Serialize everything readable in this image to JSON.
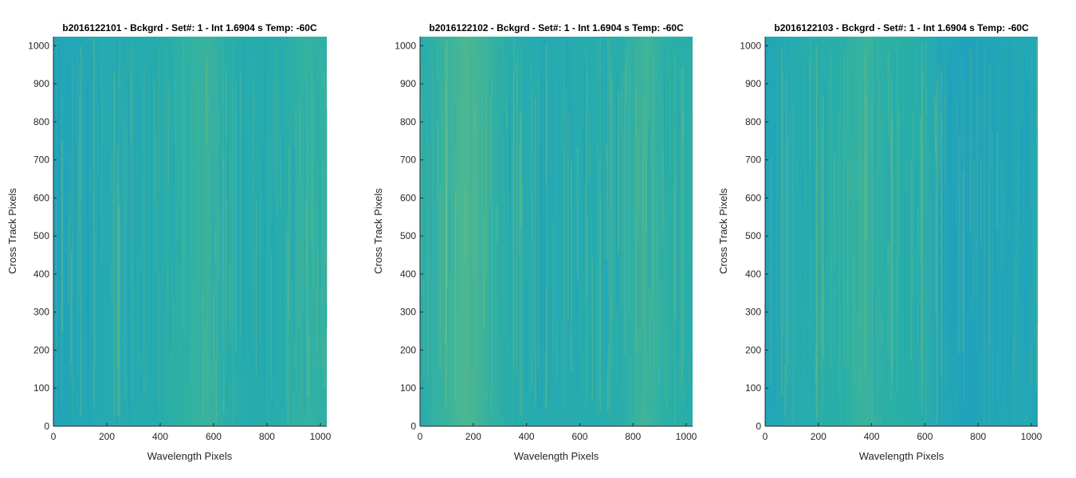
{
  "chart_data": [
    {
      "type": "heatmap",
      "title": "b2016122101 - Bckgrd - Set#: 1 - Int 1.6904 s Temp: -60C",
      "xlabel": "Wavelength Pixels",
      "ylabel": "Cross Track Pixels",
      "xlim": [
        0,
        1024
      ],
      "ylim": [
        0,
        1024
      ],
      "xticks": [
        0,
        200,
        400,
        600,
        800,
        1000
      ],
      "yticks": [
        0,
        100,
        200,
        300,
        400,
        500,
        600,
        700,
        800,
        900,
        1000
      ],
      "colormap": "parula",
      "colors": {
        "low": "#1595d4",
        "mid": "#2bb0a6",
        "high": "#a8c85c"
      },
      "column_profile": [
        {
          "x": 0,
          "level": 0.3
        },
        {
          "x": 100,
          "level": 0.34
        },
        {
          "x": 200,
          "level": 0.38
        },
        {
          "x": 300,
          "level": 0.4
        },
        {
          "x": 400,
          "level": 0.42
        },
        {
          "x": 500,
          "level": 0.52
        },
        {
          "x": 580,
          "level": 0.56
        },
        {
          "x": 650,
          "level": 0.46
        },
        {
          "x": 750,
          "level": 0.42
        },
        {
          "x": 850,
          "level": 0.44
        },
        {
          "x": 950,
          "level": 0.54
        },
        {
          "x": 1024,
          "level": 0.5
        }
      ]
    },
    {
      "type": "heatmap",
      "title": "b2016122102 - Bckgrd - Set#: 1 - Int 1.6904 s Temp: -60C",
      "xlabel": "Wavelength Pixels",
      "ylabel": "Cross Track Pixels",
      "xlim": [
        0,
        1024
      ],
      "ylim": [
        0,
        1024
      ],
      "xticks": [
        0,
        200,
        400,
        600,
        800,
        1000
      ],
      "yticks": [
        0,
        100,
        200,
        300,
        400,
        500,
        600,
        700,
        800,
        900,
        1000
      ],
      "colormap": "parula",
      "colors": {
        "low": "#1595d4",
        "mid": "#2bb0a6",
        "high": "#a8c85c"
      },
      "column_profile": [
        {
          "x": 0,
          "level": 0.44
        },
        {
          "x": 100,
          "level": 0.56
        },
        {
          "x": 180,
          "level": 0.64
        },
        {
          "x": 260,
          "level": 0.54
        },
        {
          "x": 350,
          "level": 0.44
        },
        {
          "x": 450,
          "level": 0.4
        },
        {
          "x": 550,
          "level": 0.4
        },
        {
          "x": 650,
          "level": 0.42
        },
        {
          "x": 750,
          "level": 0.44
        },
        {
          "x": 850,
          "level": 0.58
        },
        {
          "x": 920,
          "level": 0.5
        },
        {
          "x": 1024,
          "level": 0.44
        }
      ]
    },
    {
      "type": "heatmap",
      "title": "b2016122103 - Bckgrd - Set#: 1 - Int 1.6904 s Temp: -60C",
      "xlabel": "Wavelength Pixels",
      "ylabel": "Cross Track Pixels",
      "xlim": [
        0,
        1024
      ],
      "ylim": [
        0,
        1024
      ],
      "xticks": [
        0,
        200,
        400,
        600,
        800,
        1000
      ],
      "yticks": [
        0,
        100,
        200,
        300,
        400,
        500,
        600,
        700,
        800,
        900,
        1000
      ],
      "colormap": "parula",
      "colors": {
        "low": "#1595d4",
        "mid": "#2bb0a6",
        "high": "#a8c85c"
      },
      "column_profile": [
        {
          "x": 0,
          "level": 0.3
        },
        {
          "x": 100,
          "level": 0.4
        },
        {
          "x": 200,
          "level": 0.44
        },
        {
          "x": 300,
          "level": 0.5
        },
        {
          "x": 380,
          "level": 0.56
        },
        {
          "x": 450,
          "level": 0.5
        },
        {
          "x": 550,
          "level": 0.48
        },
        {
          "x": 650,
          "level": 0.36
        },
        {
          "x": 750,
          "level": 0.26
        },
        {
          "x": 850,
          "level": 0.3
        },
        {
          "x": 950,
          "level": 0.36
        },
        {
          "x": 1024,
          "level": 0.34
        }
      ]
    }
  ]
}
